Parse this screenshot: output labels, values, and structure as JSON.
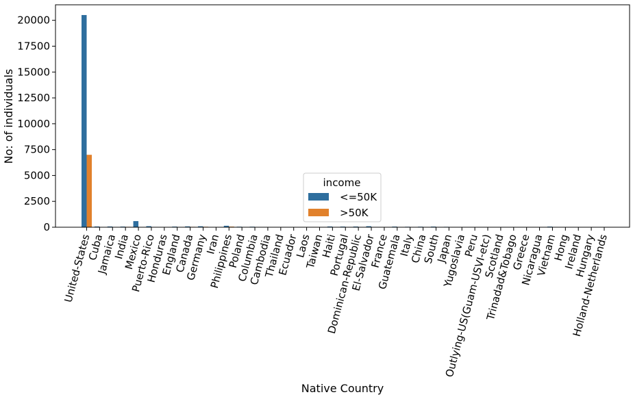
{
  "chart_data": {
    "type": "bar",
    "title": "",
    "xlabel": "Native Country",
    "ylabel": "No: of individuals",
    "ylim": [
      0,
      21500
    ],
    "yticks": [
      0,
      2500,
      5000,
      7500,
      10000,
      12500,
      15000,
      17500,
      20000
    ],
    "grid": false,
    "legend": {
      "title": "income",
      "placement": "lower-center"
    },
    "colors": {
      "<=50K": "#2e6e9e",
      ">50K": "#e1812c"
    },
    "categories": [
      "United-States",
      "Cuba",
      "Jamaica",
      "India",
      "Mexico",
      "Puerto-Rico",
      "Honduras",
      "England",
      "Canada",
      "Germany",
      "Iran",
      "Philippines",
      "Poland",
      "Columbia",
      "Cambodia",
      "Thailand",
      "Ecuador",
      "Laos",
      "Taiwan",
      "Haiti",
      "Portugal",
      "Dominican-Republic",
      "El-Salvador",
      "France",
      "Guatemala",
      "Italy",
      "China",
      "South",
      "Japan",
      "Yugoslavia",
      "Peru",
      "Outlying-US(Guam-USVI-etc)",
      "Scotland",
      "Trinadad&Tobago",
      "Greece",
      "Nicaragua",
      "Vietnam",
      "Hong",
      "Ireland",
      "Hungary",
      "Holland-Netherlands"
    ],
    "series": [
      {
        "name": "<=50K",
        "values": [
          20509,
          70,
          70,
          60,
          590,
          100,
          12,
          60,
          80,
          90,
          20,
          140,
          50,
          50,
          15,
          15,
          20,
          15,
          25,
          70,
          60,
          65,
          95,
          20,
          60,
          45,
          50,
          60,
          40,
          10,
          25,
          15,
          10,
          15,
          20,
          30,
          60,
          15,
          20,
          10,
          1
        ]
      },
      {
        "name": ">50K",
        "values": [
          7000,
          25,
          10,
          40,
          30,
          12,
          1,
          30,
          40,
          45,
          20,
          60,
          12,
          5,
          7,
          3,
          4,
          2,
          20,
          5,
          5,
          3,
          8,
          15,
          3,
          25,
          20,
          15,
          25,
          6,
          2,
          0,
          3,
          2,
          8,
          2,
          5,
          6,
          5,
          3,
          0
        ]
      }
    ]
  }
}
